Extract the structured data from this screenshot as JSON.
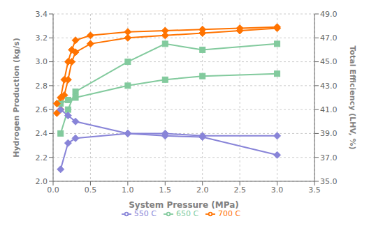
{
  "chart_data": {
    "type": "line",
    "xlabel": "System Pressure (MPa)",
    "ylabel": "Hydrogen Production (kg/s)",
    "y2label": "Total Efficiency (LHV, %)",
    "xlim": [
      0,
      3.5
    ],
    "ylim": [
      2.0,
      3.4
    ],
    "y2lim": [
      35.0,
      49.0
    ],
    "xticks": [
      {
        "value": 0,
        "label": "0.0"
      },
      0.5,
      {
        "value": 1.0,
        "label": "1.0"
      },
      1.5,
      {
        "value": 2.0,
        "label": "2.0"
      },
      2.5,
      {
        "value": 3.0,
        "label": "3.0"
      },
      3.5
    ],
    "yticks": [
      {
        "value": 2.0,
        "label": "2.0"
      },
      2.2,
      2.4,
      2.6,
      2.8,
      {
        "value": 3.0,
        "label": "3.0"
      },
      3.2,
      3.4
    ],
    "y2ticks": [
      {
        "value": 35.0,
        "label": "35.0"
      },
      {
        "value": 37.0,
        "label": "37.0"
      },
      {
        "value": 39.0,
        "label": "39.0"
      },
      {
        "value": 41.0,
        "label": "41.0"
      },
      {
        "value": 43.0,
        "label": "43.0"
      },
      {
        "value": 45.0,
        "label": "45.0"
      },
      {
        "value": 47.0,
        "label": "47.0"
      },
      {
        "value": 49.0,
        "label": "49.0"
      }
    ],
    "grid": true,
    "legend": "bottom",
    "series": [
      {
        "name": "550 C",
        "color": "#8884d8",
        "marker": "diamond",
        "x": [
          0.1,
          0.2,
          0.3,
          1.0,
          1.5,
          2.0,
          3.0
        ],
        "values": [
          2.1,
          2.32,
          2.36,
          2.4,
          2.4,
          2.38,
          2.38
        ]
      },
      {
        "name": "650 C",
        "color": "#82ca9d",
        "marker": "square",
        "x": [
          0.1,
          0.2,
          0.3,
          1.0,
          1.5,
          2.0,
          3.0
        ],
        "values": [
          2.4,
          2.6,
          2.75,
          3.0,
          3.15,
          3.1,
          3.15
        ]
      },
      {
        "name": "700 C",
        "color": "#ff7300",
        "marker": "diamond",
        "x": [
          0.05,
          0.1,
          0.15,
          0.2,
          0.25,
          0.3,
          0.5,
          1.0,
          1.5,
          2.0,
          2.5,
          3.0
        ],
        "values": [
          2.57,
          2.6,
          2.72,
          2.85,
          3.0,
          3.08,
          3.15,
          3.2,
          3.22,
          3.24,
          3.26,
          3.28
        ]
      },
      {
        "axis": "y2",
        "color": "#8884d8",
        "marker": "diamond",
        "x": [
          0.1,
          0.2,
          0.3,
          1.0,
          1.5,
          2.0,
          3.0
        ],
        "values": [
          41.0,
          40.5,
          40.0,
          39.0,
          38.8,
          38.7,
          37.2
        ]
      },
      {
        "axis": "y2",
        "color": "#82ca9d",
        "marker": "square",
        "x": [
          0.1,
          0.2,
          0.3,
          1.0,
          1.5,
          2.0,
          3.0
        ],
        "values": [
          41.5,
          41.8,
          42.0,
          43.0,
          43.5,
          43.8,
          44.0
        ]
      },
      {
        "axis": "y2",
        "color": "#ff7300",
        "marker": "diamond",
        "x": [
          0.05,
          0.1,
          0.15,
          0.2,
          0.25,
          0.3,
          0.5,
          1.0,
          1.5,
          2.0,
          2.5,
          3.0
        ],
        "values": [
          41.5,
          42.0,
          43.5,
          45.0,
          46.0,
          46.8,
          47.2,
          47.5,
          47.6,
          47.7,
          47.8,
          47.9
        ]
      }
    ]
  }
}
